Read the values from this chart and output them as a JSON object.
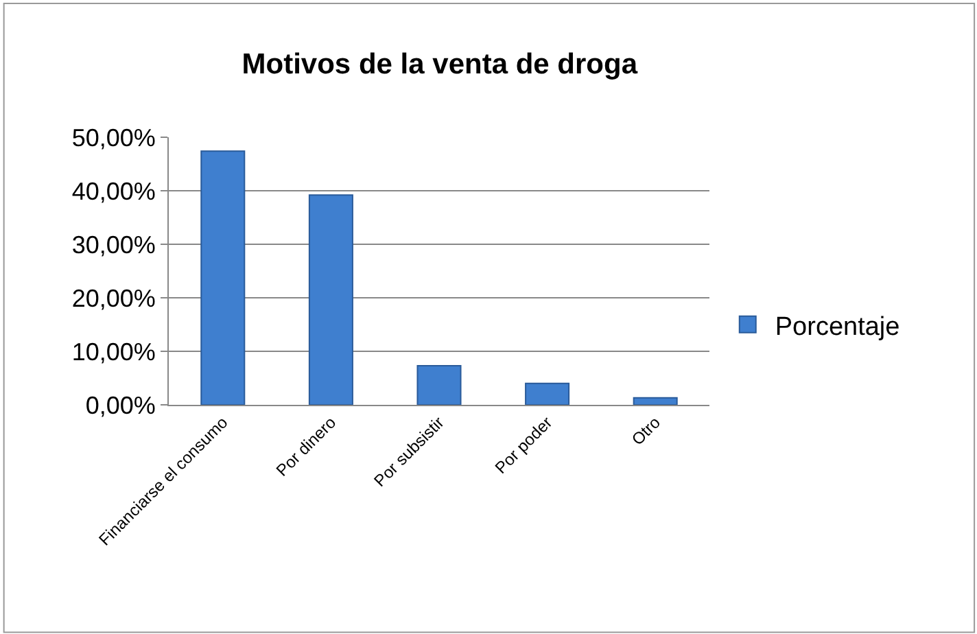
{
  "chart_data": {
    "type": "bar",
    "title": "Motivos de la venta de droga",
    "categories": [
      "Financiarse el consumo",
      "Por dinero",
      "Por subsistir",
      "Por poder",
      "Otro"
    ],
    "series": [
      {
        "name": "Porcentaje",
        "color": "#3f7fcf",
        "values": [
          47.4,
          39.2,
          7.3,
          4.0,
          1.3
        ]
      }
    ],
    "ylim": [
      0,
      50
    ],
    "yticks": [
      {
        "value": 0,
        "label": "0,00%"
      },
      {
        "value": 10,
        "label": "10,00%"
      },
      {
        "value": 20,
        "label": "20,00%"
      },
      {
        "value": 30,
        "label": "30,00%"
      },
      {
        "value": 40,
        "label": "40,00%"
      },
      {
        "value": 50,
        "label": "50,00%"
      }
    ],
    "grid": "y",
    "legend": "right"
  }
}
